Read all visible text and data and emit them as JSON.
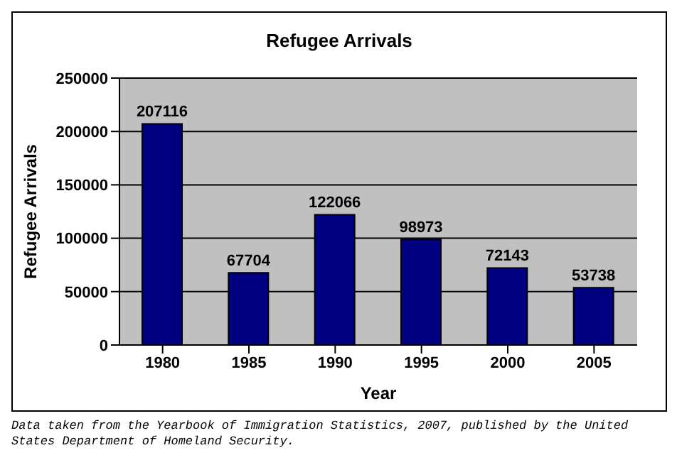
{
  "chart_data": {
    "type": "bar",
    "title": "Refugee Arrivals",
    "xlabel": "Year",
    "ylabel": "Refugee Arrivals",
    "categories": [
      "1980",
      "1985",
      "1990",
      "1995",
      "2000",
      "2005"
    ],
    "values": [
      207116,
      67704,
      122066,
      98973,
      72143,
      53738
    ],
    "color": "#000080",
    "ylim": [
      0,
      250000
    ],
    "yticks": [
      0,
      50000,
      100000,
      150000,
      200000,
      250000
    ],
    "grid": "y",
    "data_labels": true,
    "annotations": [
      "Data taken from the Yearbook of Immigration Statistics, 2007, published by the United States Department of Homeland Security."
    ]
  }
}
